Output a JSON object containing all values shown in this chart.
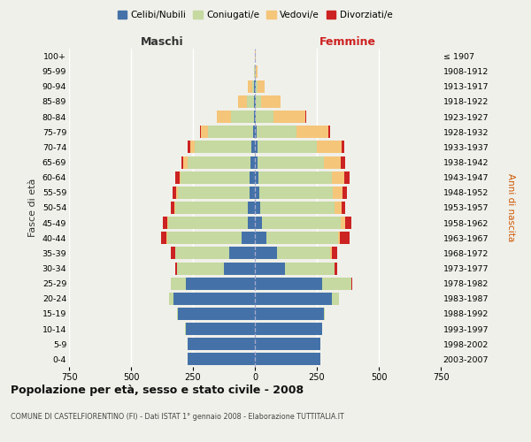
{
  "age_groups": [
    "0-4",
    "5-9",
    "10-14",
    "15-19",
    "20-24",
    "25-29",
    "30-34",
    "35-39",
    "40-44",
    "45-49",
    "50-54",
    "55-59",
    "60-64",
    "65-69",
    "70-74",
    "75-79",
    "80-84",
    "85-89",
    "90-94",
    "95-99",
    "100+"
  ],
  "birth_years": [
    "2003-2007",
    "1998-2002",
    "1993-1997",
    "1988-1992",
    "1983-1987",
    "1978-1982",
    "1973-1977",
    "1968-1972",
    "1963-1967",
    "1958-1962",
    "1953-1957",
    "1948-1952",
    "1943-1947",
    "1938-1942",
    "1933-1937",
    "1928-1932",
    "1923-1927",
    "1918-1922",
    "1913-1917",
    "1908-1912",
    "≤ 1907"
  ],
  "maschi": {
    "celibe": [
      270,
      270,
      280,
      310,
      330,
      280,
      125,
      105,
      55,
      30,
      28,
      22,
      20,
      18,
      14,
      8,
      5,
      2,
      2,
      0,
      0
    ],
    "coniugato": [
      0,
      0,
      1,
      3,
      15,
      60,
      190,
      215,
      300,
      320,
      295,
      290,
      280,
      255,
      230,
      180,
      90,
      30,
      10,
      2,
      0
    ],
    "vedovo": [
      0,
      0,
      0,
      0,
      0,
      0,
      0,
      0,
      1,
      2,
      3,
      5,
      5,
      15,
      18,
      30,
      60,
      35,
      15,
      3,
      0
    ],
    "divorziato": [
      0,
      0,
      0,
      0,
      0,
      0,
      8,
      18,
      22,
      20,
      12,
      15,
      18,
      10,
      8,
      5,
      0,
      0,
      0,
      0,
      0
    ]
  },
  "femmine": {
    "nubile": [
      265,
      265,
      270,
      280,
      310,
      270,
      120,
      90,
      45,
      28,
      22,
      18,
      15,
      12,
      10,
      8,
      5,
      3,
      2,
      0,
      0
    ],
    "coniugata": [
      0,
      0,
      1,
      3,
      30,
      120,
      200,
      215,
      290,
      320,
      300,
      295,
      295,
      265,
      240,
      160,
      70,
      22,
      8,
      2,
      0
    ],
    "vedova": [
      0,
      0,
      0,
      0,
      0,
      0,
      2,
      5,
      8,
      15,
      28,
      40,
      50,
      70,
      100,
      130,
      130,
      80,
      30,
      8,
      2
    ],
    "divorziata": [
      0,
      0,
      0,
      0,
      0,
      2,
      10,
      22,
      38,
      28,
      15,
      18,
      22,
      18,
      10,
      5,
      2,
      0,
      0,
      0,
      0
    ]
  },
  "colors": {
    "celibe": "#4472a8",
    "coniugato": "#c5d9a0",
    "vedovo": "#f5c57a",
    "divorziato": "#cc2222"
  },
  "xlim": 750,
  "title": "Popolazione per età, sesso e stato civile - 2008",
  "subtitle": "COMUNE DI CASTELFIORENTINO (FI) - Dati ISTAT 1° gennaio 2008 - Elaborazione TUTTITALIA.IT",
  "ylabel_left": "Fasce di età",
  "ylabel_right": "Anni di nascita",
  "xlabel_maschi": "Maschi",
  "xlabel_femmine": "Femmine",
  "legend_labels": [
    "Celibi/Nubili",
    "Coniugati/e",
    "Vedovi/e",
    "Divorziati/e"
  ],
  "bg_color": "#f0f0ea",
  "grid_color": "#ffffff",
  "maschi_label_color": "#333333",
  "femmine_label_color": "#cc2222",
  "anni_nascita_color": "#cc5500"
}
